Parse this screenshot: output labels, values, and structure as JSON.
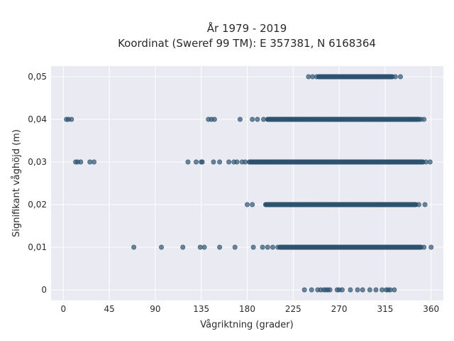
{
  "chart_data": {
    "type": "scatter",
    "title_lines": [
      "År 1979 - 2019",
      "Koordinat (Sweref 99 TM): E 357381, N 6168364"
    ],
    "xlabel": "Vågriktning (grader)",
    "ylabel": "Signifikant våghöjd (m)",
    "xlim": [
      -12,
      372
    ],
    "ylim": [
      -0.0025,
      0.0525
    ],
    "x_ticks": [
      0,
      45,
      90,
      135,
      180,
      225,
      270,
      315,
      360
    ],
    "x_tick_labels": [
      "0",
      "45",
      "90",
      "135",
      "180",
      "225",
      "270",
      "315",
      "360"
    ],
    "y_ticks": [
      0,
      0.01,
      0.02,
      0.03,
      0.04,
      0.05
    ],
    "y_tick_labels": [
      "0",
      "0,01",
      "0,02",
      "0,03",
      "0,04",
      "0,05"
    ],
    "grid": true,
    "background_color": "#eaeaf2",
    "grid_color": "#ffffff",
    "marker_color": "#2e5470",
    "series": [
      {
        "y": 0.05,
        "points": [
          240,
          244,
          248
        ],
        "dense_range": [
          250,
          322
        ],
        "tail_points": [
          325,
          330
        ]
      },
      {
        "y": 0.04,
        "points": [
          3,
          5,
          8,
          142,
          145,
          148,
          173,
          185,
          190,
          196
        ],
        "dense_range": [
          200,
          348
        ],
        "tail_points": [
          350,
          353
        ]
      },
      {
        "y": 0.03,
        "points": [
          12,
          14,
          17,
          26,
          30,
          122,
          130,
          135,
          136,
          147,
          153,
          162,
          167,
          170,
          175,
          178,
          182
        ],
        "dense_range": [
          183,
          352
        ],
        "tail_points": [
          355,
          359
        ]
      },
      {
        "y": 0.02,
        "points": [
          180,
          185
        ],
        "dense_range": [
          198,
          345
        ],
        "tail_points": [
          348,
          354
        ]
      },
      {
        "y": 0.01,
        "points": [
          69,
          96,
          117,
          134,
          138,
          153,
          168,
          186,
          195,
          200,
          205,
          210
        ],
        "dense_range": [
          212,
          350
        ],
        "tail_points": [
          353,
          360
        ]
      },
      {
        "y": 0,
        "points": [
          236,
          243,
          249,
          252,
          255,
          257,
          259,
          261,
          268,
          270,
          273,
          281,
          288,
          293,
          300,
          306,
          312,
          316,
          318,
          320,
          324
        ]
      }
    ]
  }
}
